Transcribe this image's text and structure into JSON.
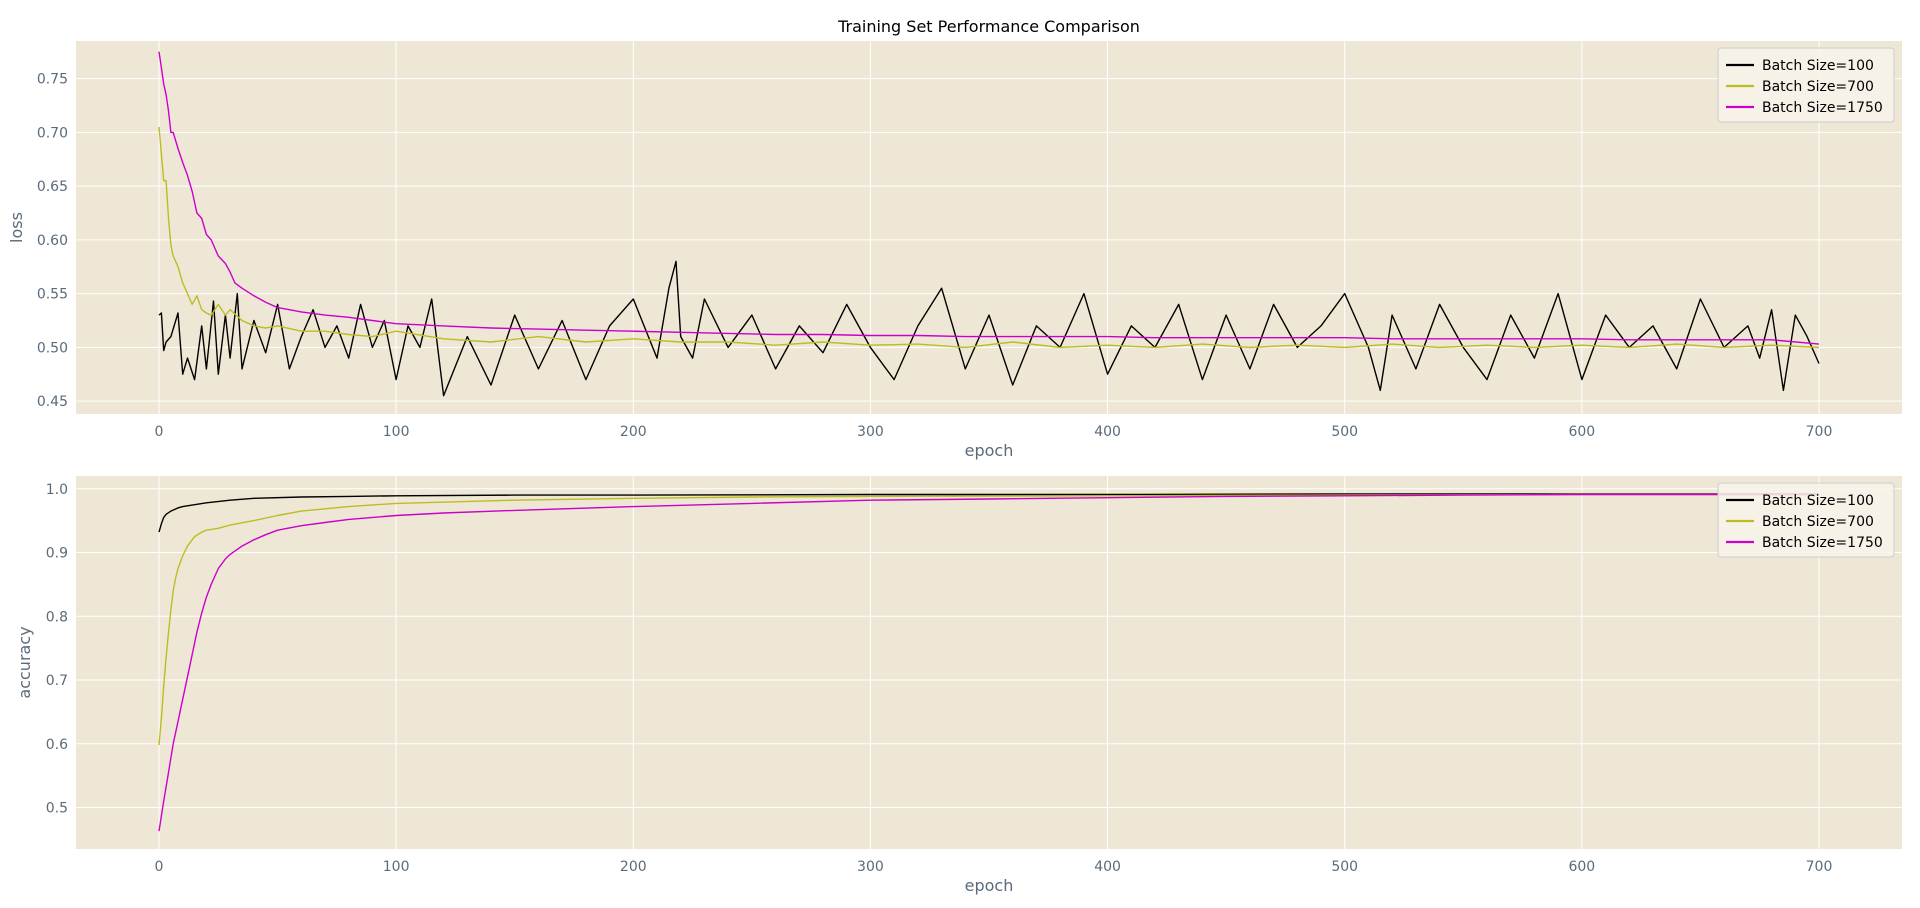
{
  "title": "Training Set Performance Comparison",
  "colors": {
    "axes_bg": "#eee7d5",
    "grid": "#ffffff",
    "legend_bg": "#f7f3ea",
    "legend_border": "#cccccc"
  },
  "chart_data": [
    {
      "type": "line",
      "name": "loss-chart",
      "xlabel": "epoch",
      "ylabel": "loss",
      "xlim": [
        -35,
        735
      ],
      "ylim": [
        0.438,
        0.785
      ],
      "xticks": [
        0,
        100,
        200,
        300,
        400,
        500,
        600,
        700
      ],
      "yticks": [
        0.45,
        0.5,
        0.55,
        0.6,
        0.65,
        0.7,
        0.75
      ],
      "ytick_labels": [
        "0.45",
        "0.50",
        "0.55",
        "0.60",
        "0.65",
        "0.70",
        "0.75"
      ],
      "grid": true,
      "legend_position": "top-right",
      "series": [
        {
          "name": "Batch Size=100",
          "color": "#000000",
          "x": [
            0,
            1,
            2,
            3,
            5,
            8,
            10,
            12,
            15,
            18,
            20,
            23,
            25,
            28,
            30,
            33,
            35,
            40,
            45,
            50,
            55,
            60,
            65,
            70,
            75,
            80,
            85,
            90,
            95,
            100,
            105,
            110,
            115,
            120,
            130,
            140,
            150,
            160,
            170,
            180,
            190,
            200,
            210,
            215,
            218,
            220,
            225,
            230,
            240,
            250,
            260,
            270,
            280,
            290,
            300,
            310,
            320,
            330,
            340,
            350,
            360,
            370,
            380,
            390,
            400,
            410,
            420,
            430,
            440,
            450,
            460,
            470,
            480,
            490,
            500,
            510,
            515,
            520,
            530,
            540,
            550,
            560,
            570,
            580,
            590,
            600,
            610,
            620,
            630,
            640,
            650,
            660,
            670,
            675,
            680,
            685,
            690,
            695,
            700
          ],
          "y": [
            0.53,
            0.532,
            0.497,
            0.505,
            0.51,
            0.532,
            0.475,
            0.49,
            0.47,
            0.52,
            0.48,
            0.543,
            0.475,
            0.53,
            0.49,
            0.55,
            0.48,
            0.525,
            0.495,
            0.54,
            0.48,
            0.51,
            0.535,
            0.5,
            0.52,
            0.49,
            0.54,
            0.5,
            0.525,
            0.47,
            0.52,
            0.5,
            0.545,
            0.455,
            0.51,
            0.465,
            0.53,
            0.48,
            0.525,
            0.47,
            0.52,
            0.545,
            0.49,
            0.555,
            0.58,
            0.51,
            0.49,
            0.545,
            0.5,
            0.53,
            0.48,
            0.52,
            0.495,
            0.54,
            0.5,
            0.47,
            0.52,
            0.555,
            0.48,
            0.53,
            0.465,
            0.52,
            0.5,
            0.55,
            0.475,
            0.52,
            0.5,
            0.54,
            0.47,
            0.53,
            0.48,
            0.54,
            0.5,
            0.52,
            0.55,
            0.5,
            0.46,
            0.53,
            0.48,
            0.54,
            0.5,
            0.47,
            0.53,
            0.49,
            0.55,
            0.47,
            0.53,
            0.5,
            0.52,
            0.48,
            0.545,
            0.5,
            0.52,
            0.49,
            0.535,
            0.46,
            0.53,
            0.51,
            0.485
          ]
        },
        {
          "name": "Batch Size=700",
          "color": "#bcbd22",
          "x": [
            0,
            1,
            2,
            3,
            4,
            5,
            6,
            8,
            10,
            12,
            14,
            16,
            18,
            20,
            22,
            25,
            28,
            30,
            35,
            40,
            45,
            50,
            60,
            70,
            80,
            90,
            100,
            120,
            140,
            160,
            180,
            200,
            220,
            240,
            260,
            280,
            300,
            320,
            340,
            360,
            380,
            400,
            420,
            440,
            460,
            480,
            500,
            520,
            540,
            560,
            580,
            600,
            620,
            640,
            660,
            680,
            700
          ],
          "y": [
            0.705,
            0.68,
            0.655,
            0.655,
            0.62,
            0.595,
            0.585,
            0.575,
            0.56,
            0.55,
            0.54,
            0.548,
            0.535,
            0.532,
            0.53,
            0.54,
            0.53,
            0.535,
            0.525,
            0.52,
            0.518,
            0.52,
            0.515,
            0.515,
            0.512,
            0.51,
            0.515,
            0.508,
            0.505,
            0.51,
            0.505,
            0.508,
            0.505,
            0.505,
            0.502,
            0.505,
            0.502,
            0.503,
            0.5,
            0.505,
            0.5,
            0.502,
            0.5,
            0.503,
            0.5,
            0.502,
            0.5,
            0.503,
            0.5,
            0.502,
            0.5,
            0.502,
            0.5,
            0.503,
            0.5,
            0.502,
            0.5
          ]
        },
        {
          "name": "Batch Size=1750",
          "color": "#cc00cc",
          "x": [
            0,
            1,
            2,
            3,
            4,
            5,
            6,
            8,
            10,
            12,
            14,
            16,
            18,
            20,
            22,
            25,
            28,
            30,
            32,
            35,
            40,
            45,
            50,
            55,
            60,
            70,
            80,
            90,
            100,
            120,
            140,
            160,
            180,
            200,
            220,
            240,
            260,
            280,
            300,
            320,
            340,
            360,
            380,
            400,
            420,
            440,
            460,
            480,
            500,
            520,
            540,
            560,
            580,
            600,
            620,
            640,
            660,
            680,
            700
          ],
          "y": [
            0.775,
            0.76,
            0.745,
            0.735,
            0.72,
            0.7,
            0.7,
            0.685,
            0.672,
            0.66,
            0.645,
            0.625,
            0.62,
            0.605,
            0.6,
            0.585,
            0.578,
            0.57,
            0.56,
            0.555,
            0.548,
            0.542,
            0.537,
            0.535,
            0.533,
            0.53,
            0.528,
            0.525,
            0.522,
            0.52,
            0.518,
            0.517,
            0.516,
            0.515,
            0.514,
            0.513,
            0.512,
            0.512,
            0.511,
            0.511,
            0.51,
            0.51,
            0.51,
            0.51,
            0.509,
            0.509,
            0.509,
            0.509,
            0.509,
            0.508,
            0.508,
            0.508,
            0.508,
            0.508,
            0.507,
            0.507,
            0.507,
            0.507,
            0.503
          ]
        }
      ]
    },
    {
      "type": "line",
      "name": "accuracy-chart",
      "xlabel": "epoch",
      "ylabel": "accuracy",
      "xlim": [
        -35,
        735
      ],
      "ylim": [
        0.435,
        1.02
      ],
      "xticks": [
        0,
        100,
        200,
        300,
        400,
        500,
        600,
        700
      ],
      "yticks": [
        0.5,
        0.6,
        0.7,
        0.8,
        0.9,
        1.0
      ],
      "ytick_labels": [
        "0.5",
        "0.6",
        "0.7",
        "0.8",
        "0.9",
        "1.0"
      ],
      "grid": true,
      "legend_position": "top-right",
      "series": [
        {
          "name": "Batch Size=100",
          "color": "#000000",
          "x": [
            0,
            1,
            2,
            3,
            5,
            8,
            10,
            15,
            20,
            30,
            40,
            60,
            80,
            100,
            150,
            200,
            300,
            400,
            500,
            600,
            700
          ],
          "y": [
            0.932,
            0.945,
            0.955,
            0.96,
            0.965,
            0.97,
            0.972,
            0.975,
            0.978,
            0.982,
            0.985,
            0.987,
            0.988,
            0.989,
            0.99,
            0.99,
            0.991,
            0.991,
            0.992,
            0.992,
            0.992
          ]
        },
        {
          "name": "Batch Size=700",
          "color": "#bcbd22",
          "x": [
            0,
            1,
            2,
            3,
            4,
            5,
            6,
            7,
            8,
            10,
            12,
            15,
            18,
            20,
            25,
            30,
            40,
            50,
            60,
            80,
            100,
            150,
            200,
            250,
            300,
            400,
            500,
            600,
            700
          ],
          "y": [
            0.598,
            0.64,
            0.69,
            0.735,
            0.775,
            0.81,
            0.84,
            0.86,
            0.875,
            0.895,
            0.91,
            0.925,
            0.932,
            0.935,
            0.938,
            0.943,
            0.95,
            0.958,
            0.965,
            0.972,
            0.977,
            0.982,
            0.985,
            0.987,
            0.988,
            0.989,
            0.99,
            0.991,
            0.991
          ]
        },
        {
          "name": "Batch Size=1750",
          "color": "#cc00cc",
          "x": [
            0,
            2,
            4,
            6,
            8,
            10,
            12,
            14,
            16,
            18,
            20,
            22,
            25,
            28,
            30,
            35,
            40,
            45,
            50,
            60,
            70,
            80,
            100,
            120,
            150,
            200,
            250,
            300,
            350,
            400,
            450,
            500,
            550,
            600,
            650,
            700
          ],
          "y": [
            0.463,
            0.51,
            0.555,
            0.6,
            0.635,
            0.67,
            0.705,
            0.74,
            0.775,
            0.805,
            0.83,
            0.85,
            0.875,
            0.89,
            0.897,
            0.91,
            0.92,
            0.928,
            0.935,
            0.942,
            0.947,
            0.952,
            0.958,
            0.962,
            0.966,
            0.972,
            0.977,
            0.982,
            0.984,
            0.986,
            0.988,
            0.989,
            0.99,
            0.991,
            0.991,
            0.991
          ]
        }
      ]
    }
  ]
}
